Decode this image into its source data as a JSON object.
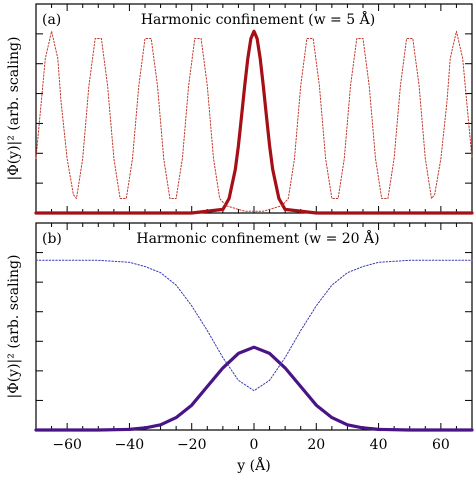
{
  "chart_data": [
    {
      "type": "line",
      "panel": "(a)",
      "title": "Harmonic confinement (w = 5 Å)",
      "ylabel": "|Φ(y)|² (arb. scaling)",
      "xlabel": "",
      "xlim": [
        -70,
        70
      ],
      "ylim": [
        0,
        1.15
      ],
      "x_ticks": [
        -60,
        -40,
        -20,
        0,
        20,
        40,
        60
      ],
      "grid": false,
      "series": [
        {
          "style": "solid",
          "color": "#a50f15",
          "x": [
            -70,
            -20,
            -10,
            -8,
            -6,
            -5,
            -4,
            -3,
            -2,
            -1,
            0,
            1,
            2,
            3,
            4,
            5,
            6,
            8,
            10,
            20,
            70
          ],
          "y": [
            0,
            0,
            0.02,
            0.08,
            0.24,
            0.37,
            0.53,
            0.7,
            0.85,
            0.96,
            1.0,
            0.96,
            0.85,
            0.7,
            0.53,
            0.37,
            0.24,
            0.08,
            0.02,
            0,
            0
          ]
        },
        {
          "style": "dotted",
          "color": "#c0392b",
          "x": [
            -70,
            -67,
            -65,
            -63,
            -62,
            -60,
            -58,
            -57,
            -55,
            -53,
            -51,
            -49,
            -47,
            -45,
            -43,
            -41,
            -39,
            -37,
            -35,
            -33,
            -31,
            -29,
            -27,
            -25,
            -23,
            -21,
            -19,
            -17,
            -15,
            -13,
            -11,
            -9,
            -7,
            -5,
            -3,
            -1,
            0,
            1,
            3,
            5,
            7,
            9,
            11,
            13,
            15,
            17,
            19,
            21,
            23,
            25,
            27,
            29,
            31,
            33,
            35,
            37,
            39,
            41,
            43,
            45,
            47,
            49,
            51,
            53,
            55,
            57,
            58,
            60,
            62,
            63,
            65,
            67,
            70
          ],
          "y": [
            0.3,
            0.85,
            1.0,
            0.85,
            0.62,
            0.3,
            0.1,
            0.08,
            0.3,
            0.7,
            0.96,
            0.96,
            0.7,
            0.3,
            0.08,
            0.08,
            0.3,
            0.7,
            0.96,
            0.96,
            0.7,
            0.3,
            0.08,
            0.08,
            0.3,
            0.7,
            0.96,
            0.96,
            0.7,
            0.3,
            0.08,
            0.04,
            0.03,
            0.02,
            0.01,
            0.01,
            0.01,
            0.01,
            0.01,
            0.02,
            0.03,
            0.04,
            0.08,
            0.3,
            0.7,
            0.96,
            0.96,
            0.7,
            0.3,
            0.08,
            0.08,
            0.3,
            0.7,
            0.96,
            0.96,
            0.7,
            0.3,
            0.08,
            0.08,
            0.3,
            0.7,
            0.96,
            0.96,
            0.7,
            0.3,
            0.08,
            0.1,
            0.3,
            0.62,
            0.85,
            1.0,
            0.85,
            0.3
          ]
        }
      ]
    },
    {
      "type": "line",
      "panel": "(b)",
      "title": "Harmonic confinement (w = 20 Å)",
      "ylabel": "|Φ(y)|² (arb. scaling)",
      "xlabel": "y (Å)",
      "xlim": [
        -70,
        70
      ],
      "ylim": [
        0,
        1.0
      ],
      "x_ticks": [
        -60,
        -40,
        -20,
        0,
        20,
        40,
        60
      ],
      "x_tick_labels": [
        "−60",
        "−40",
        "−20",
        "0",
        "20",
        "40",
        "60"
      ],
      "grid": false,
      "series": [
        {
          "style": "solid",
          "color": "#4a1486",
          "x": [
            -70,
            -50,
            -40,
            -35,
            -30,
            -25,
            -20,
            -15,
            -10,
            -5,
            0,
            5,
            10,
            15,
            20,
            25,
            30,
            35,
            40,
            50,
            70
          ],
          "y": [
            0,
            0,
            0.003,
            0.01,
            0.025,
            0.06,
            0.12,
            0.21,
            0.3,
            0.37,
            0.4,
            0.37,
            0.3,
            0.21,
            0.12,
            0.06,
            0.025,
            0.01,
            0.003,
            0,
            0
          ]
        },
        {
          "style": "dotted",
          "color": "#3a3ab0",
          "x": [
            -70,
            -50,
            -40,
            -35,
            -30,
            -25,
            -20,
            -15,
            -10,
            -5,
            0,
            5,
            10,
            15,
            20,
            25,
            30,
            35,
            40,
            50,
            70
          ],
          "y": [
            0.82,
            0.82,
            0.81,
            0.79,
            0.76,
            0.7,
            0.6,
            0.48,
            0.35,
            0.24,
            0.19,
            0.24,
            0.35,
            0.48,
            0.6,
            0.7,
            0.76,
            0.79,
            0.81,
            0.82,
            0.82
          ]
        }
      ]
    }
  ]
}
